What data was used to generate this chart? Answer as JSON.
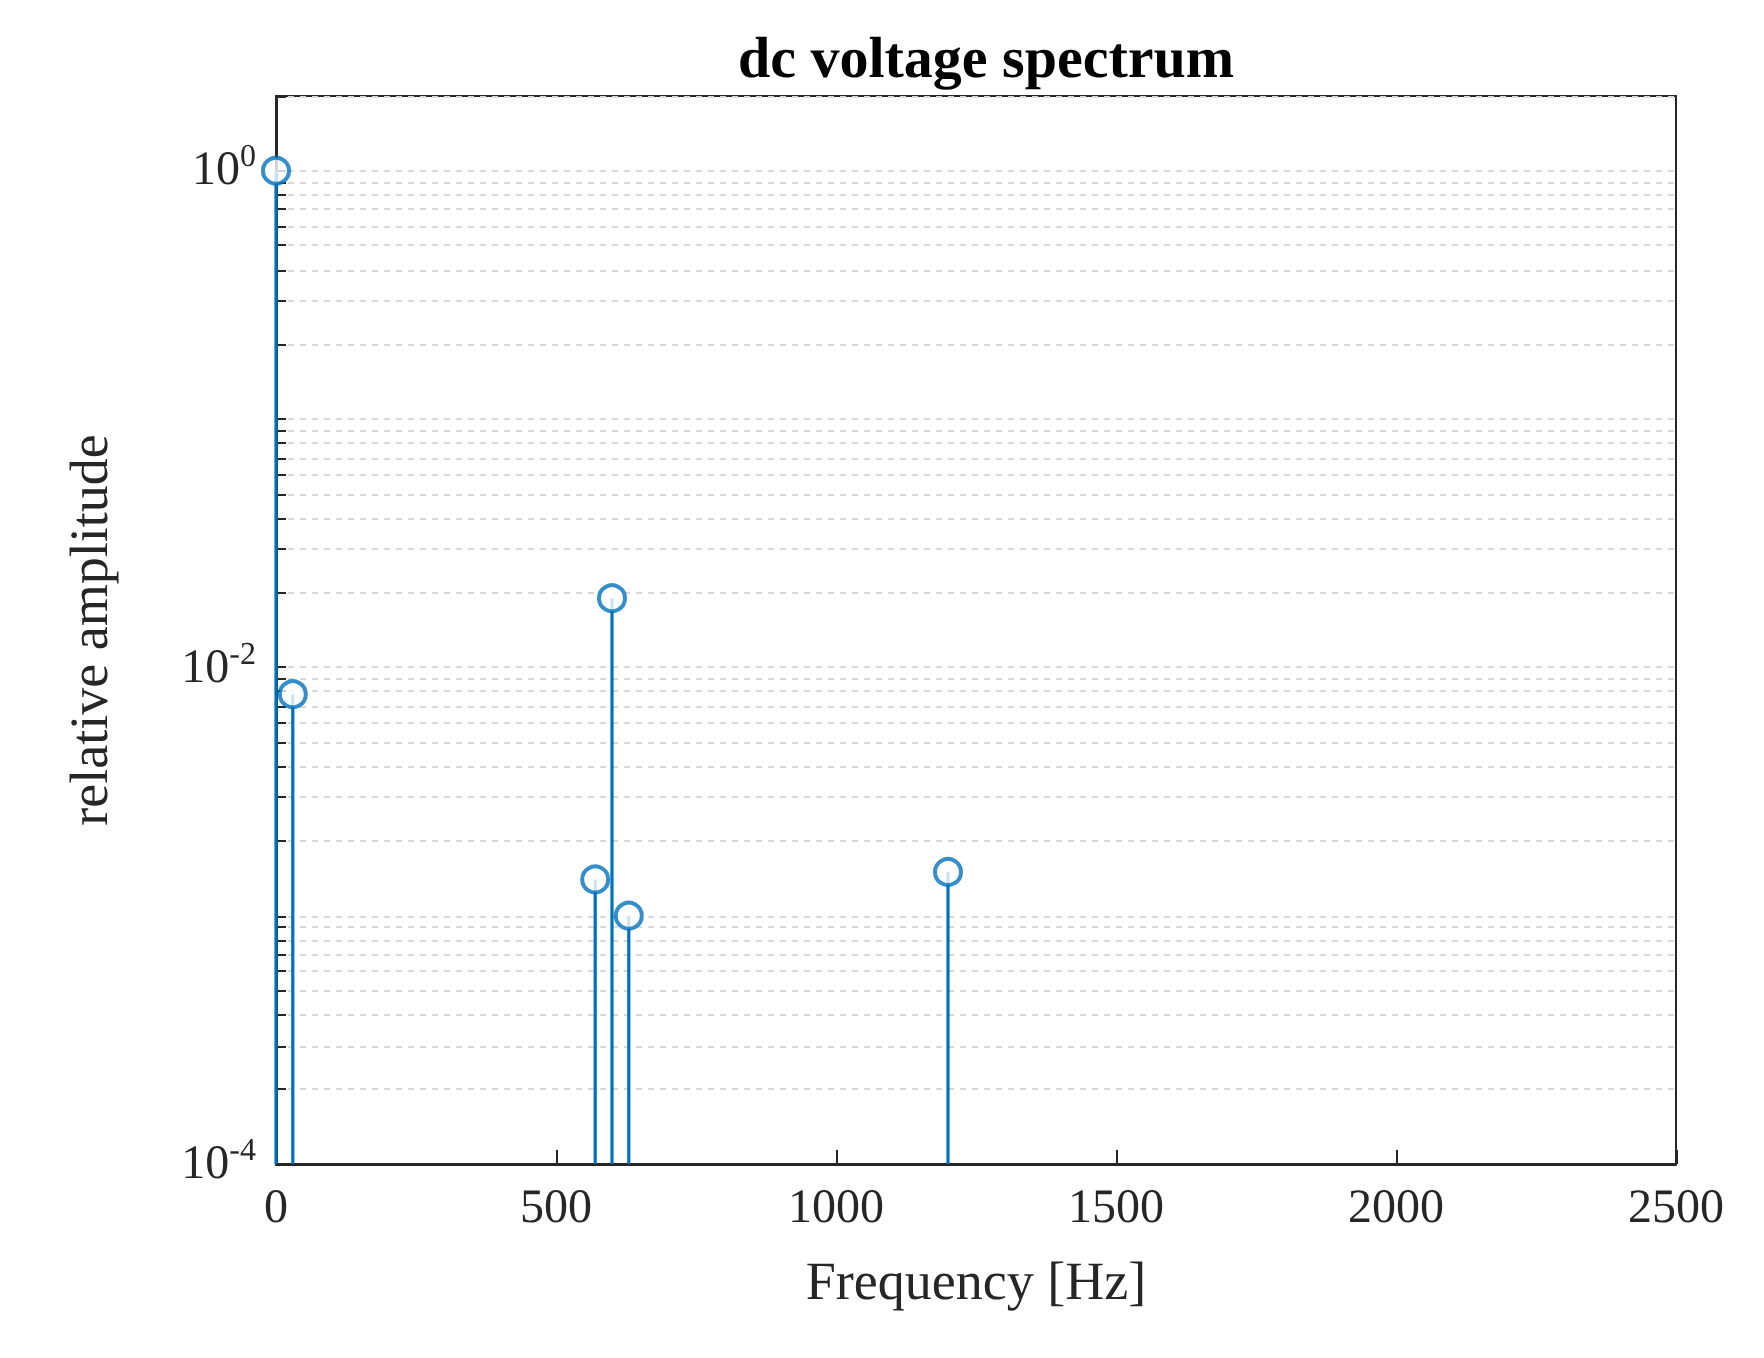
{
  "chart_data": {
    "type": "lollipop",
    "title": "dc voltage spectrum",
    "xlabel": "Frequency [Hz]",
    "ylabel": "relative amplitude",
    "x": [
      0,
      30,
      570,
      600,
      630,
      1200
    ],
    "series": [
      {
        "color": "#0072bd",
        "values": [
          1,
          0.0078,
          0.0014,
          0.019,
          0.001,
          0.0015
        ]
      }
    ],
    "xlim": [
      0,
      2500
    ],
    "xticks": [
      0,
      500,
      1000,
      1500,
      2000,
      2500
    ],
    "ylim": [
      0.0001,
      2
    ],
    "yticks": [
      {
        "value": 0.0001,
        "label": "10$^{-4}$"
      },
      {
        "value": 0.0002,
        "label": null
      },
      {
        "value": 0.0003,
        "label": null
      },
      {
        "value": 0.0004,
        "label": null
      },
      {
        "value": 0.0005,
        "label": null
      },
      {
        "value": 0.0006,
        "label": null
      },
      {
        "value": 0.0007,
        "label": null
      },
      {
        "value": 0.0008,
        "label": null
      },
      {
        "value": 0.0009,
        "label": null
      },
      {
        "value": 0.001,
        "label": null
      },
      {
        "value": 0.002,
        "label": null
      },
      {
        "value": 0.003,
        "label": null
      },
      {
        "value": 0.004,
        "label": null
      },
      {
        "value": 0.005,
        "label": null
      },
      {
        "value": 0.006,
        "label": null
      },
      {
        "value": 0.007,
        "label": null
      },
      {
        "value": 0.008,
        "label": null
      },
      {
        "value": 0.009,
        "label": null
      },
      {
        "value": 0.01,
        "label": "10$^{-2}$"
      },
      {
        "value": 0.02,
        "label": null
      },
      {
        "value": 0.03,
        "label": null
      },
      {
        "value": 0.04,
        "label": null
      },
      {
        "value": 0.05,
        "label": null
      },
      {
        "value": 0.06,
        "label": null
      },
      {
        "value": 0.07,
        "label": null
      },
      {
        "value": 0.08,
        "label": null
      },
      {
        "value": 0.09,
        "label": null
      },
      {
        "value": 0.1,
        "label": null
      },
      {
        "value": 0.2,
        "label": null
      },
      {
        "value": 0.3,
        "label": null
      },
      {
        "value": 0.4,
        "label": null
      },
      {
        "value": 0.5,
        "label": null
      },
      {
        "value": 0.6,
        "label": null
      },
      {
        "value": 0.7,
        "label": null
      },
      {
        "value": 0.8,
        "label": null
      },
      {
        "value": 0.9,
        "label": null
      },
      {
        "value": 1,
        "label": "10$^{0}$"
      },
      {
        "value": 2,
        "label": null
      }
    ],
    "log": "y",
    "grid": "y",
    "marker": "circle"
  }
}
